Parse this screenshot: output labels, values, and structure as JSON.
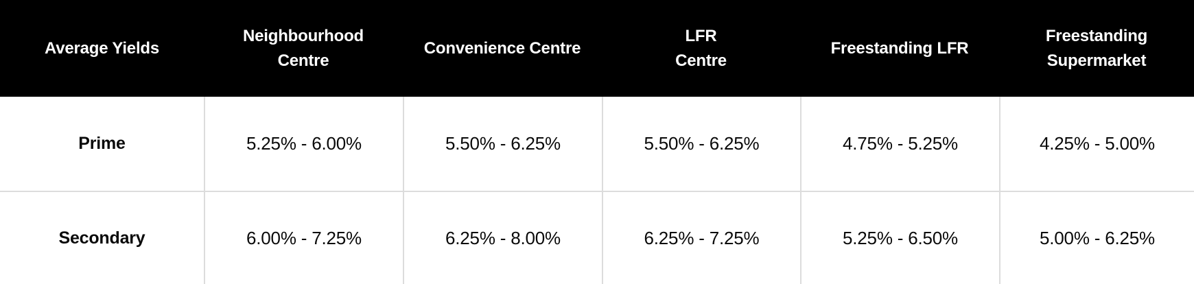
{
  "table": {
    "header": {
      "row_label": "Average Yields",
      "columns": [
        "Neighbourhood\nCentre",
        "Convenience Centre",
        "LFR\nCentre",
        "Freestanding LFR",
        "Freestanding\nSupermarket"
      ]
    },
    "rows": [
      {
        "label": "Prime",
        "values": [
          "5.25% - 6.00%",
          "5.50% - 6.25%",
          "5.50% - 6.25%",
          "4.75% - 5.25%",
          "4.25% - 5.00%"
        ]
      },
      {
        "label": "Secondary",
        "values": [
          "6.00% - 7.25%",
          "6.25% - 8.00%",
          "6.25% - 7.25%",
          "5.25% - 6.50%",
          "5.00% - 6.25%"
        ]
      }
    ],
    "colors": {
      "header_bg": "#000000",
      "header_text": "#ffffff",
      "body_text": "#0a0a0a",
      "divider": "#dcdcdc",
      "body_bg": "#ffffff"
    }
  },
  "chart_data": {
    "type": "table",
    "title": "Average Yields",
    "categories": [
      "Neighbourhood Centre",
      "Convenience Centre",
      "LFR Centre",
      "Freestanding LFR",
      "Freestanding Supermarket"
    ],
    "series": [
      {
        "name": "Prime",
        "values": [
          "5.25% - 6.00%",
          "5.50% - 6.25%",
          "5.50% - 6.25%",
          "4.75% - 5.25%",
          "4.25% - 5.00%"
        ]
      },
      {
        "name": "Secondary",
        "values": [
          "6.00% - 7.25%",
          "6.25% - 8.00%",
          "6.25% - 7.25%",
          "5.25% - 6.50%",
          "5.00% - 6.25%"
        ]
      }
    ],
    "series_numeric_ranges_pct": [
      {
        "name": "Prime",
        "low": [
          5.25,
          5.5,
          5.5,
          4.75,
          4.25
        ],
        "high": [
          6.0,
          6.25,
          6.25,
          5.25,
          5.0
        ]
      },
      {
        "name": "Secondary",
        "low": [
          6.0,
          6.25,
          6.25,
          5.25,
          5.0
        ],
        "high": [
          7.25,
          8.0,
          7.25,
          6.5,
          6.25
        ]
      }
    ]
  }
}
